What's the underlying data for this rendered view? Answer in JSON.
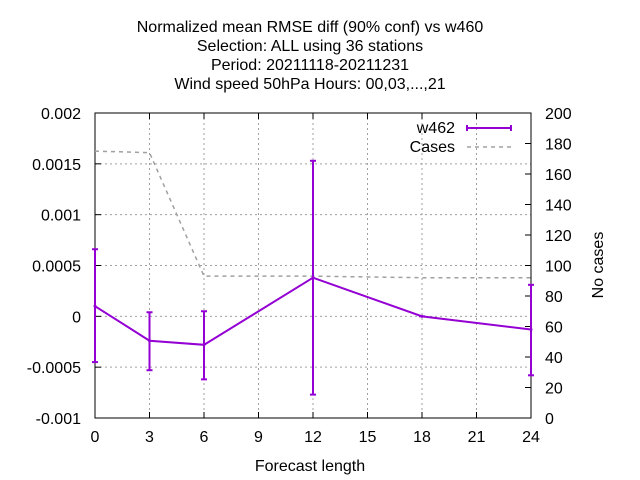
{
  "chart_data": {
    "type": "line",
    "title_lines": [
      "Normalized mean RMSE diff (90% conf) vs w460",
      "Selection: ALL using    36 stations",
      "Period: 20211118-20211231",
      "Wind speed 50hPa   Hours:  00,03,...,21"
    ],
    "xlabel": "Forecast length",
    "ylabel": "",
    "y2label": "No cases",
    "xlim": [
      0,
      24
    ],
    "ylim": [
      -0.001,
      0.002
    ],
    "y2lim": [
      0,
      200
    ],
    "x_ticks": [
      0,
      3,
      6,
      9,
      12,
      15,
      18,
      21,
      24
    ],
    "x_tick_labels": [
      "0",
      "3",
      "6",
      "9",
      "12",
      "15",
      "18",
      "21",
      "24"
    ],
    "y_ticks": [
      -0.001,
      -0.0005,
      0,
      0.0005,
      0.001,
      0.0015,
      0.002
    ],
    "y_tick_labels": [
      "-0.001",
      "-0.0005",
      "0",
      "0.0005",
      "0.001",
      "0.0015",
      "0.002"
    ],
    "y2_ticks": [
      0,
      20,
      40,
      60,
      80,
      100,
      120,
      140,
      160,
      180,
      200
    ],
    "y2_tick_labels": [
      "0",
      "20",
      "40",
      "60",
      "80",
      "100",
      "120",
      "140",
      "160",
      "180",
      "200"
    ],
    "grid": true,
    "legend_position": "top-right",
    "series": [
      {
        "name": "w462",
        "style": "line-errorbars",
        "color": "#9400d3",
        "axis": "y",
        "x": [
          0,
          3,
          6,
          12,
          18,
          24
        ],
        "values": [
          0.0001,
          -0.00024,
          -0.00028,
          0.00038,
          0.0,
          -0.00013
        ],
        "err_low": [
          -0.00045,
          -0.00053,
          -0.00062,
          -0.00077,
          0.0,
          -0.00058
        ],
        "err_high": [
          0.00066,
          4e-05,
          5e-05,
          0.00153,
          0.0,
          0.00031
        ]
      },
      {
        "name": "Cases",
        "style": "dashed",
        "color": "#a0a0a0",
        "axis": "y2",
        "x": [
          0,
          3,
          6,
          12,
          18,
          24
        ],
        "values": [
          175,
          174,
          93,
          93,
          92,
          92
        ]
      }
    ]
  }
}
